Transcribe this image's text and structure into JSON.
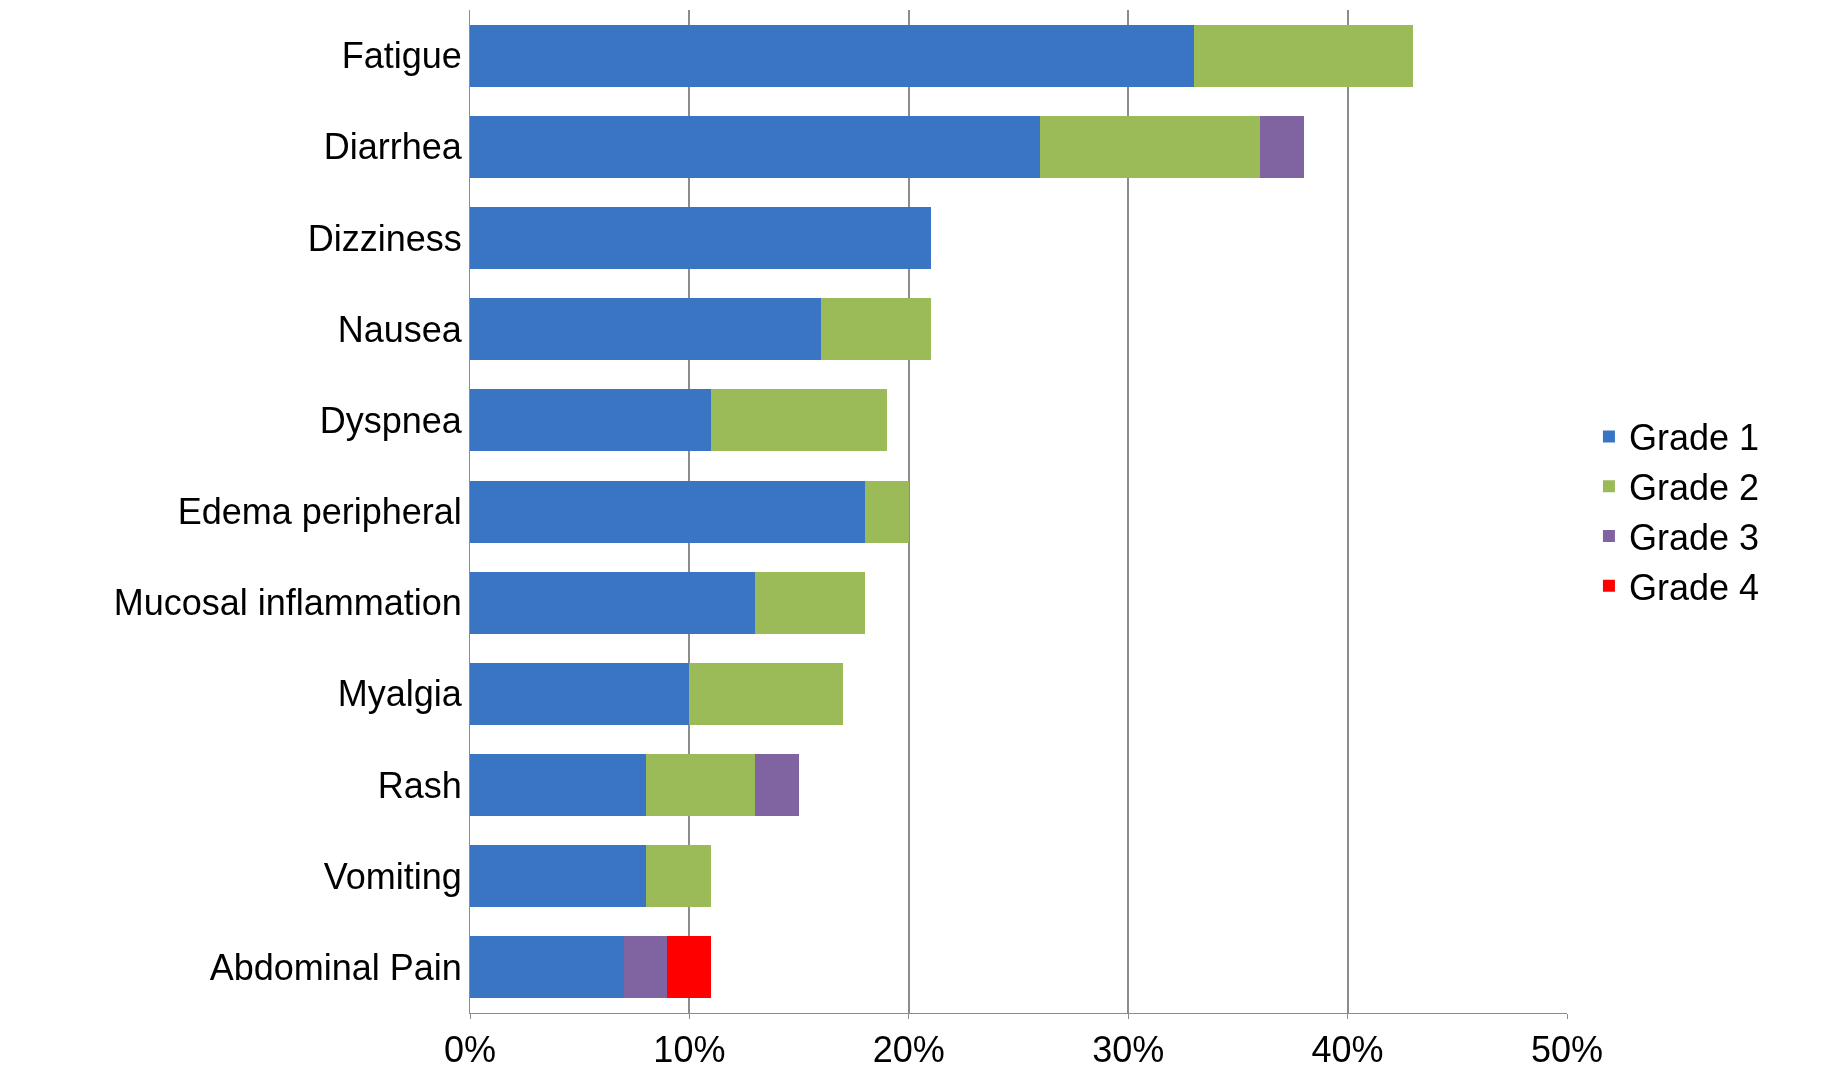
{
  "chart_data": {
    "type": "bar",
    "orientation": "horizontal",
    "stacked": true,
    "categories": [
      "Fatigue",
      "Diarrhea",
      "Dizziness",
      "Nausea",
      "Dyspnea",
      "Edema peripheral",
      "Mucosal inflammation",
      "Myalgia",
      "Rash",
      "Vomiting",
      "Abdominal Pain"
    ],
    "series": [
      {
        "name": "Grade 1",
        "color": "#3a75c4",
        "values": [
          33,
          26,
          21,
          16,
          11,
          18,
          13,
          10,
          8,
          8,
          7
        ]
      },
      {
        "name": "Grade 2",
        "color": "#9bbb59",
        "values": [
          10,
          10,
          null,
          5,
          8,
          2,
          5,
          7,
          5,
          3,
          null
        ]
      },
      {
        "name": "Grade 3",
        "color": "#8064a2",
        "values": [
          null,
          2,
          null,
          null,
          null,
          null,
          null,
          null,
          2,
          null,
          2
        ]
      },
      {
        "name": "Grade 4",
        "color": "#ff0000",
        "values": [
          null,
          null,
          null,
          null,
          null,
          null,
          null,
          null,
          null,
          null,
          2
        ]
      }
    ],
    "xlim": [
      0,
      50
    ],
    "xticks": [
      {
        "value": 0,
        "label": "0%"
      },
      {
        "value": 10,
        "label": "10%"
      },
      {
        "value": 20,
        "label": "20%"
      },
      {
        "value": 30,
        "label": "30%"
      },
      {
        "value": 40,
        "label": "40%"
      },
      {
        "value": 50,
        "label": "50%"
      }
    ],
    "grid": "x",
    "legend": "right"
  }
}
